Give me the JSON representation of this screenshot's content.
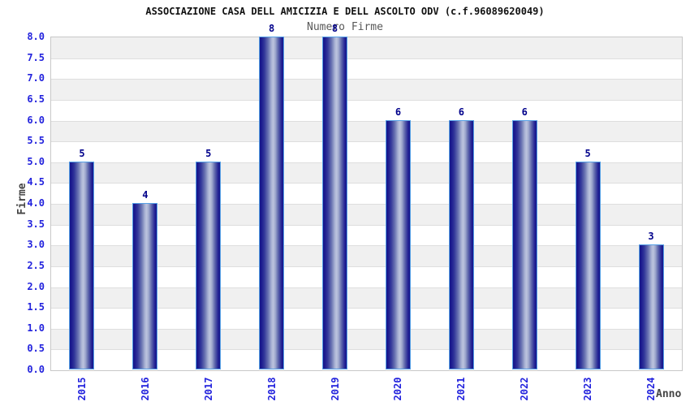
{
  "chart_data": {
    "type": "bar",
    "title": "ASSOCIAZIONE CASA DELL AMICIZIA E DELL ASCOLTO ODV (c.f.96089620049)",
    "subtitle": "Numero Firme",
    "xlabel": "Anno",
    "ylabel": "Firme",
    "categories": [
      "2015",
      "2016",
      "2017",
      "2018",
      "2019",
      "2020",
      "2021",
      "2022",
      "2023",
      "2024"
    ],
    "values": [
      5,
      4,
      5,
      8,
      8,
      6,
      6,
      6,
      5,
      3
    ],
    "ylim": [
      0,
      8
    ],
    "ytick_step": 0.5,
    "ytick_format_decimals": 1,
    "grid": "horizontal-bands-alternating",
    "legend": "none",
    "colors": {
      "background": "#ffffff",
      "title": "#111111",
      "subtitle": "#595959",
      "axis_label": "#454545",
      "tick_label": "#2222dd",
      "value_label": "#00008b",
      "bar_dark": "#14148a",
      "bar_light": "#bcc4de",
      "bar_border": "#55a0e6",
      "band": "#f0f0f0",
      "grid_line": "#dedede",
      "plot_border": "#c8c8c8"
    }
  }
}
